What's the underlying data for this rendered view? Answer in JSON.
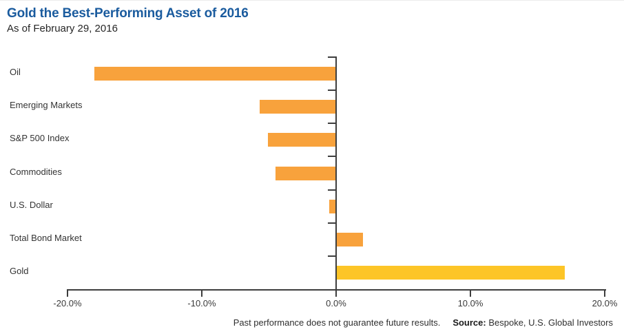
{
  "header": {
    "title": "Gold the Best-Performing Asset of 2016",
    "subtitle": "As of February 29, 2016"
  },
  "footer": {
    "disclaimer": "Past performance does not guarantee future results.",
    "source_label": "Source:",
    "source_text": "Bespoke, U.S. Global Investors"
  },
  "colors": {
    "title_blue": "#1A5B9E",
    "bar_orange": "#F8A23C",
    "bar_gold": "#FDC527",
    "axis": "#3d3d3d",
    "label_text": "#333333"
  },
  "chart_data": {
    "type": "bar",
    "orientation": "horizontal",
    "title": "Gold the Best-Performing Asset of 2016",
    "subtitle": "As of February 29, 2016",
    "categories": [
      "Oil",
      "Emerging Markets",
      "S&P 500 Index",
      "Commodities",
      "U.S. Dollar",
      "Total Bond Market",
      "Gold"
    ],
    "values": [
      -18.0,
      -5.7,
      -5.1,
      -4.5,
      -0.5,
      2.0,
      17.0
    ],
    "unit": "percent",
    "xlim": [
      -20,
      20
    ],
    "x_tick_values": [
      -20,
      -10,
      0,
      10,
      20
    ],
    "x_tick_labels": [
      "-20.0%",
      "-10.0%",
      "0.0%",
      "10.0%",
      "20.0%"
    ],
    "bar_colors": [
      "#F8A23C",
      "#F8A23C",
      "#F8A23C",
      "#F8A23C",
      "#F8A23C",
      "#F8A23C",
      "#FDC527"
    ],
    "grid": false,
    "legend": false,
    "value_axis_position": "bottom",
    "zero_line": true
  }
}
